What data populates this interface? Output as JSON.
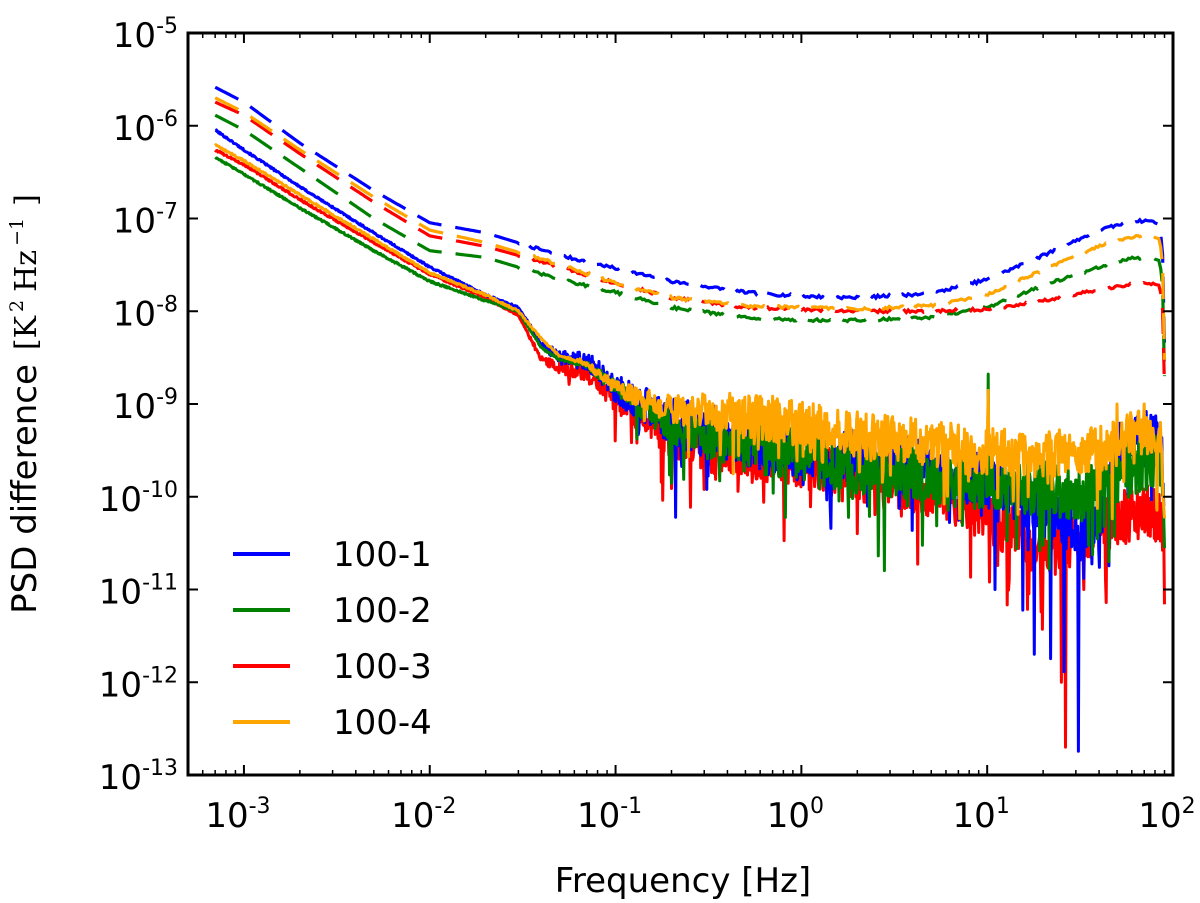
{
  "chart_data": {
    "type": "line",
    "xscale": "log",
    "yscale": "log",
    "xlim": [
      0.0005,
      100
    ],
    "ylim": [
      1e-13,
      1e-05
    ],
    "x_ticks": [
      {
        "base": "10",
        "exp": "-3",
        "value": 0.001
      },
      {
        "base": "10",
        "exp": "-2",
        "value": 0.01
      },
      {
        "base": "10",
        "exp": "-1",
        "value": 0.1
      },
      {
        "base": "10",
        "exp": "0",
        "value": 1
      },
      {
        "base": "10",
        "exp": "1",
        "value": 10
      },
      {
        "base": "10",
        "exp": "2",
        "value": 100
      }
    ],
    "y_ticks": [
      {
        "base": "10",
        "exp": "-13",
        "value": 1e-13
      },
      {
        "base": "10",
        "exp": "-12",
        "value": 1e-12
      },
      {
        "base": "10",
        "exp": "-11",
        "value": 1e-11
      },
      {
        "base": "10",
        "exp": "-10",
        "value": 1e-10
      },
      {
        "base": "10",
        "exp": "-9",
        "value": 1e-09
      },
      {
        "base": "10",
        "exp": "-8",
        "value": 1e-08
      },
      {
        "base": "10",
        "exp": "-7",
        "value": 1e-07
      },
      {
        "base": "10",
        "exp": "-6",
        "value": 1e-06
      },
      {
        "base": "10",
        "exp": "-5",
        "value": 1e-05
      }
    ],
    "xlabel": "Frequency [Hz]",
    "ylabel": {
      "text": "PSD difference",
      "unit_open": "[K",
      "unit_sup1": "2",
      "unit_mid": "Hz",
      "unit_sup2": "−1",
      "unit_close": "]"
    },
    "legend_position": "lower-left",
    "series": [
      {
        "name": "100-1",
        "color": "#0000ff",
        "solid": {
          "x": [
            0.0007,
            0.001,
            0.002,
            0.005,
            0.01,
            0.02,
            0.03,
            0.04,
            0.05,
            0.07,
            0.1,
            0.2,
            0.3,
            0.5,
            1,
            2,
            5,
            10,
            20,
            30,
            40,
            50,
            60,
            70,
            80,
            87,
            90
          ],
          "y": [
            9e-07,
            5.5e-07,
            2.2e-07,
            7e-08,
            3e-08,
            1.5e-08,
            1.1e-08,
            4.5e-09,
            3.2e-09,
            3e-09,
            1.5e-09,
            7e-10,
            5.5e-10,
            4.5e-10,
            3.5e-10,
            2.8e-10,
            2.2e-10,
            1.6e-10,
            8e-11,
            5e-11,
            7e-11,
            3.5e-10,
            4.5e-10,
            4.5e-10,
            4.5e-10,
            3e-10,
            6e-11
          ],
          "noise_start": 0.03,
          "noise_amp": 0.3,
          "spikes": [
            [
              0.21,
              6e-11
            ],
            [
              0.31,
              1.2e-10
            ],
            [
              11,
              1e-11
            ],
            [
              15.5,
              6e-12
            ],
            [
              18,
              2e-12
            ],
            [
              22,
              1.8e-12
            ],
            [
              26,
              1.3e-12
            ],
            [
              31,
              1.8e-13
            ],
            [
              45,
              1.8e-11
            ]
          ]
        },
        "dashed": {
          "x": [
            0.0007,
            0.001,
            0.002,
            0.005,
            0.01,
            0.02,
            0.05,
            0.1,
            0.2,
            0.5,
            1,
            2,
            5,
            10,
            20,
            40,
            60,
            75,
            85,
            88,
            90
          ],
          "y": [
            2.6e-06,
            1.8e-06,
            6.5e-07,
            2e-07,
            9e-08,
            7e-08,
            4e-08,
            2.9e-08,
            2.1e-08,
            1.6e-08,
            1.45e-08,
            1.4e-08,
            1.55e-08,
            2.2e-08,
            4e-08,
            7.5e-08,
            9.3e-08,
            9.5e-08,
            8.5e-08,
            4e-08,
            4e-09
          ],
          "dash_solid_after": 0.03
        }
      },
      {
        "name": "100-2",
        "color": "#008000",
        "solid": {
          "x": [
            0.0007,
            0.001,
            0.002,
            0.005,
            0.01,
            0.02,
            0.03,
            0.04,
            0.05,
            0.07,
            0.1,
            0.2,
            0.3,
            0.5,
            1,
            2,
            5,
            10,
            20,
            30,
            40,
            50,
            60,
            70,
            80,
            87,
            90
          ],
          "y": [
            4.6e-07,
            3e-07,
            1.3e-07,
            4.5e-08,
            2.1e-08,
            1.3e-08,
            1e-08,
            4e-09,
            3e-09,
            2.7e-09,
            1.5e-09,
            6e-10,
            4.5e-10,
            4e-10,
            3e-10,
            2.3e-10,
            1.8e-10,
            1.5e-10,
            1.3e-10,
            1.1e-10,
            1.3e-10,
            1.8e-10,
            2.2e-10,
            2.5e-10,
            2.5e-10,
            2e-10,
            5e-11
          ],
          "noise_start": 0.05,
          "noise_amp": 0.3,
          "spikes": [
            [
              0.2,
              1.4e-10
            ],
            [
              0.82,
              6e-11
            ],
            [
              1.6,
              9e-11
            ],
            [
              2.6,
              2.3e-11
            ],
            [
              2.8,
              1.6e-11
            ],
            [
              4.5,
              3e-11
            ],
            [
              10.1,
              2.1e-09
            ],
            [
              20,
              3e-11
            ],
            [
              35,
              3e-11
            ],
            [
              45,
              2e-11
            ]
          ]
        },
        "dashed": {
          "x": [
            0.0007,
            0.001,
            0.002,
            0.005,
            0.01,
            0.02,
            0.05,
            0.1,
            0.2,
            0.5,
            1,
            2,
            5,
            10,
            20,
            40,
            60,
            75,
            85,
            88,
            90
          ],
          "y": [
            1.3e-06,
            9e-07,
            3.5e-07,
            1e-07,
            4.5e-08,
            3.8e-08,
            2.2e-08,
            1.6e-08,
            1.1e-08,
            8.5e-09,
            8e-09,
            8e-09,
            8.5e-09,
            1.1e-08,
            1.9e-08,
            3e-08,
            3.7e-08,
            3.8e-08,
            3.5e-08,
            1.8e-08,
            2e-09
          ],
          "dash_solid_after": 0.03
        }
      },
      {
        "name": "100-3",
        "color": "#ff0000",
        "solid": {
          "x": [
            0.0007,
            0.001,
            0.002,
            0.005,
            0.01,
            0.02,
            0.03,
            0.04,
            0.05,
            0.07,
            0.1,
            0.2,
            0.3,
            0.5,
            1,
            2,
            5,
            10,
            15,
            20,
            25,
            30,
            40,
            50,
            60,
            70,
            80,
            87,
            90
          ],
          "y": [
            5.5e-07,
            3.8e-07,
            1.6e-07,
            5.5e-08,
            2.5e-08,
            1.4e-08,
            9e-09,
            3e-09,
            2.5e-09,
            2.2e-09,
            1.2e-09,
            5e-10,
            4e-10,
            3e-10,
            2.5e-10,
            1.7e-10,
            1.3e-10,
            7e-11,
            4e-11,
            3e-11,
            3e-11,
            4e-11,
            5e-11,
            6e-11,
            7e-11,
            7.5e-11,
            7e-11,
            6e-11,
            3e-11
          ],
          "noise_start": 0.03,
          "noise_amp": 0.3,
          "spikes": [
            [
              0.1,
              4e-10
            ],
            [
              0.13,
              3.8e-10
            ],
            [
              0.3,
              1.2e-10
            ],
            [
              10.1,
              3e-10
            ],
            [
              25,
              1e-12
            ],
            [
              26.5,
              2e-13
            ],
            [
              33,
              1e-11
            ]
          ]
        },
        "dashed": {
          "x": [
            0.0007,
            0.001,
            0.002,
            0.005,
            0.01,
            0.02,
            0.05,
            0.1,
            0.2,
            0.5,
            1,
            2,
            5,
            10,
            20,
            40,
            60,
            75,
            85,
            88,
            90
          ],
          "y": [
            1.8e-06,
            1.3e-06,
            5e-07,
            1.5e-07,
            6.5e-08,
            5e-08,
            3e-08,
            2e-08,
            1.4e-08,
            1.1e-08,
            1.05e-08,
            1e-08,
            1e-08,
            1.05e-08,
            1.3e-08,
            1.7e-08,
            1.95e-08,
            2e-08,
            1.9e-08,
            1e-08,
            1.5e-09
          ],
          "dash_solid_after": 0.03
        }
      },
      {
        "name": "100-4",
        "color": "#ffa500",
        "solid": {
          "x": [
            0.0007,
            0.001,
            0.002,
            0.005,
            0.01,
            0.02,
            0.03,
            0.04,
            0.05,
            0.07,
            0.1,
            0.2,
            0.3,
            0.5,
            1,
            2,
            5,
            10,
            20,
            30,
            40,
            50,
            60,
            70,
            80,
            87,
            90
          ],
          "y": [
            6.2e-07,
            4.2e-07,
            1.8e-07,
            6e-08,
            2.6e-08,
            1.5e-08,
            1e-08,
            5e-09,
            3.3e-09,
            2.8e-09,
            1.5e-09,
            9e-10,
            9e-10,
            8e-10,
            6.5e-10,
            5e-10,
            4e-10,
            3.3e-10,
            3e-10,
            3.3e-10,
            3.5e-10,
            4e-10,
            5e-10,
            5.5e-10,
            5e-10,
            4e-10,
            7e-11
          ],
          "noise_start": 0.05,
          "noise_amp": 0.25,
          "spikes": [
            [
              10.1,
              1.4e-09
            ],
            [
              50,
              1e-09
            ],
            [
              70,
              1e-09
            ]
          ]
        },
        "dashed": {
          "x": [
            0.0007,
            0.001,
            0.002,
            0.005,
            0.01,
            0.02,
            0.05,
            0.1,
            0.2,
            0.5,
            1,
            2,
            5,
            10,
            20,
            40,
            60,
            75,
            85,
            88,
            90
          ],
          "y": [
            2e-06,
            1.4e-06,
            5.5e-07,
            1.7e-07,
            7.5e-08,
            5.5e-08,
            3.2e-08,
            2e-08,
            1.4e-08,
            1.15e-08,
            1.1e-08,
            1.05e-08,
            1.15e-08,
            1.5e-08,
            2.8e-08,
            5e-08,
            6.3e-08,
            6.5e-08,
            6e-08,
            3e-08,
            3e-09
          ],
          "dash_solid_after": 0.03
        }
      }
    ]
  }
}
